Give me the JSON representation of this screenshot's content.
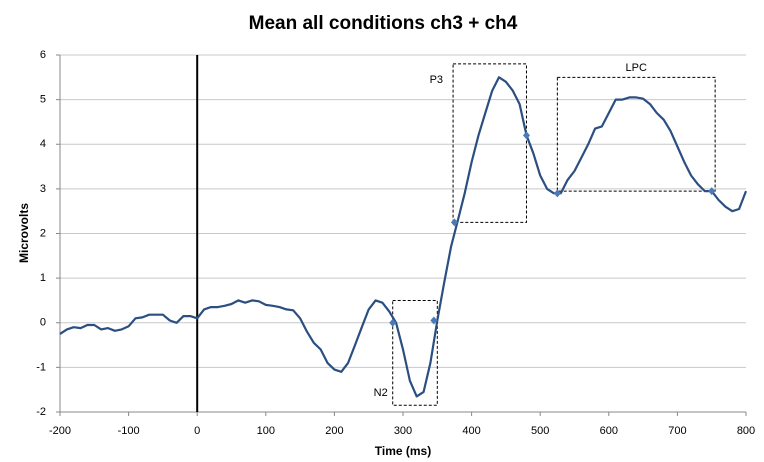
{
  "chart_data": {
    "type": "line",
    "title": "Mean all conditions ch3 + ch4",
    "x_label": "Time (ms)",
    "y_label": "Microvolts",
    "x": [
      -200,
      -190,
      -180,
      -170,
      -160,
      -150,
      -140,
      -130,
      -120,
      -110,
      -100,
      -90,
      -80,
      -70,
      -60,
      -50,
      -40,
      -30,
      -20,
      -10,
      0,
      10,
      20,
      30,
      40,
      50,
      60,
      70,
      80,
      90,
      100,
      110,
      120,
      130,
      140,
      150,
      160,
      170,
      180,
      190,
      200,
      210,
      220,
      230,
      240,
      250,
      260,
      270,
      280,
      290,
      300,
      310,
      320,
      330,
      340,
      350,
      360,
      370,
      380,
      390,
      400,
      410,
      420,
      430,
      440,
      450,
      460,
      470,
      480,
      490,
      500,
      510,
      520,
      530,
      540,
      550,
      560,
      570,
      580,
      590,
      600,
      610,
      620,
      630,
      640,
      650,
      660,
      670,
      680,
      690,
      700,
      710,
      720,
      730,
      740,
      750,
      760,
      770,
      780,
      790,
      800
    ],
    "values": [
      -0.25,
      -0.15,
      -0.1,
      -0.12,
      -0.05,
      -0.05,
      -0.15,
      -0.12,
      -0.18,
      -0.15,
      -0.08,
      0.1,
      0.12,
      0.18,
      0.18,
      0.18,
      0.05,
      0.0,
      0.15,
      0.15,
      0.1,
      0.3,
      0.35,
      0.35,
      0.38,
      0.42,
      0.5,
      0.45,
      0.5,
      0.48,
      0.4,
      0.38,
      0.35,
      0.3,
      0.28,
      0.1,
      -0.2,
      -0.45,
      -0.6,
      -0.9,
      -1.05,
      -1.1,
      -0.9,
      -0.5,
      -0.1,
      0.3,
      0.5,
      0.45,
      0.25,
      0.0,
      -0.6,
      -1.3,
      -1.65,
      -1.55,
      -0.9,
      0.05,
      0.9,
      1.7,
      2.3,
      2.9,
      3.6,
      4.2,
      4.7,
      5.2,
      5.5,
      5.4,
      5.2,
      4.9,
      4.2,
      3.8,
      3.3,
      3.0,
      2.9,
      2.9,
      3.2,
      3.4,
      3.7,
      4.0,
      4.35,
      4.4,
      4.7,
      5.0,
      5.0,
      5.05,
      5.05,
      5.02,
      4.9,
      4.7,
      4.55,
      4.3,
      3.95,
      3.6,
      3.3,
      3.1,
      2.95,
      2.95,
      2.75,
      2.6,
      2.5,
      2.55,
      2.95
    ],
    "color": "#2b4f81",
    "markers": {
      "x": [
        285,
        345,
        375,
        480,
        525,
        750
      ],
      "y": [
        0.0,
        0.05,
        2.25,
        4.2,
        2.9,
        2.95
      ]
    },
    "vline": 0,
    "annotations": [
      {
        "label": "P3",
        "xlim": [
          373,
          480
        ],
        "ylim": [
          2.25,
          5.8
        ]
      },
      {
        "label": "N2",
        "xlim": [
          285,
          350
        ],
        "ylim": [
          -1.85,
          0.5
        ]
      },
      {
        "label": "LPC",
        "xlim": [
          525,
          755
        ],
        "ylim": [
          2.95,
          5.5
        ]
      }
    ],
    "xlim": [
      -200,
      800
    ],
    "ylim": [
      -2,
      6
    ],
    "xticks": [
      -200,
      -100,
      0,
      100,
      200,
      300,
      400,
      500,
      600,
      700,
      800
    ],
    "yticks": [
      -2,
      -1,
      0,
      1,
      2,
      3,
      4,
      5,
      6
    ],
    "grid": true
  }
}
